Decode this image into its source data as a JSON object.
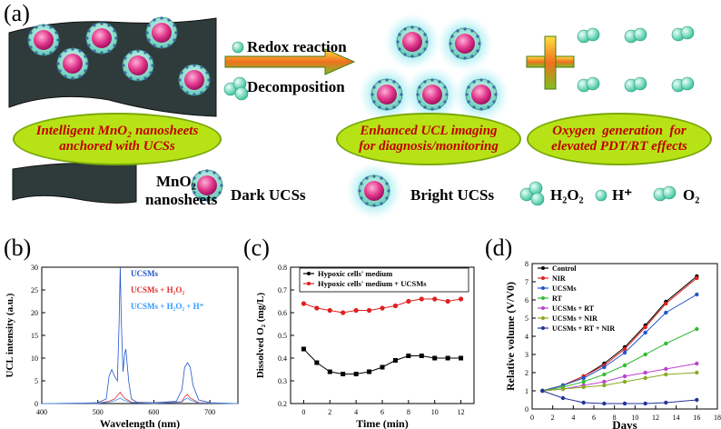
{
  "panel_a": {
    "label": "(a)",
    "arrow_top_text": "Redox reaction",
    "arrow_bottom_text": "Decomposition",
    "oval_left_line1": "Intelligent MnO₂ nanosheets",
    "oval_left_line2": "anchored with UCSs",
    "oval_mid_line1": "Enhanced UCL imaging",
    "oval_mid_line2": "for diagnosis/monitoring",
    "oval_right_line1": "Oxygen  generation  for",
    "oval_right_line2": "elevated PDT/RT effects",
    "legend_mno2_line1": "MnO₂",
    "legend_mno2_line2": "nanosheets",
    "legend_dark": "Dark UCSs",
    "legend_bright": "Bright UCSs",
    "legend_h2o2": "H₂O₂",
    "legend_h": "H⁺",
    "legend_o2": "O₂",
    "colors": {
      "oval_fill": "#b7e316",
      "oval_text": "#c00000",
      "sheet": "#2f3b3b",
      "sphere_core": "#e0358a",
      "sphere_shell": "#7fe0d0",
      "glow": "#9fe8ee"
    }
  },
  "chart_data": [
    {
      "panel": "(b)",
      "type": "line",
      "xlabel": "Wavelength (nm)",
      "ylabel": "UCL intensity (a.u.)",
      "xlim": [
        400,
        750
      ],
      "ylim": [
        0,
        30
      ],
      "xticks": [
        400,
        500,
        600,
        700
      ],
      "yticks": [
        0,
        5,
        10,
        15,
        20,
        25,
        30
      ],
      "series": [
        {
          "name": "UCSMs",
          "color": "#2255cc",
          "x": [
            400,
            470,
            500,
            515,
            520,
            525,
            530,
            535,
            538,
            540,
            542,
            545,
            548,
            550,
            555,
            560,
            570,
            600,
            640,
            650,
            655,
            660,
            665,
            670,
            680,
            700,
            750
          ],
          "y": [
            0,
            0.1,
            0.2,
            1,
            6,
            7.5,
            6,
            5,
            18,
            30,
            18,
            7,
            11,
            12,
            5,
            1,
            0.3,
            0.2,
            0.5,
            3,
            8,
            9,
            8,
            4,
            0.8,
            0.2,
            0
          ]
        },
        {
          "name": "UCSMs + H₂O₂",
          "color": "#e03030",
          "x": [
            400,
            500,
            520,
            530,
            540,
            545,
            550,
            560,
            600,
            650,
            655,
            660,
            665,
            680,
            750
          ],
          "y": [
            0,
            0.1,
            0.5,
            1,
            2.5,
            1.5,
            1,
            0.3,
            0.1,
            0.4,
            1.5,
            2,
            1.2,
            0.2,
            0
          ]
        },
        {
          "name": "UCSMs + H₂O₂ + H⁺",
          "color": "#3399ff",
          "x": [
            400,
            500,
            520,
            530,
            540,
            545,
            550,
            560,
            600,
            650,
            655,
            660,
            665,
            680,
            750
          ],
          "y": [
            0,
            0.05,
            0.3,
            0.6,
            1.2,
            0.8,
            0.6,
            0.2,
            0.05,
            0.3,
            0.9,
            1.2,
            0.8,
            0.1,
            0
          ]
        }
      ]
    },
    {
      "panel": "(c)",
      "type": "line",
      "xlabel": "Time (min)",
      "ylabel": "Dissolved O₂ (mg/L)",
      "xlim": [
        -1,
        13
      ],
      "ylim": [
        0.2,
        0.8
      ],
      "xticks": [
        0,
        2,
        4,
        6,
        8,
        10,
        12
      ],
      "yticks": [
        0.2,
        0.3,
        0.4,
        0.5,
        0.6,
        0.7,
        0.8
      ],
      "series": [
        {
          "name": "Hypoxic cells' medium",
          "color": "#000000",
          "marker": "square",
          "x": [
            0,
            1,
            2,
            3,
            4,
            5,
            6,
            7,
            8,
            9,
            10,
            11,
            12
          ],
          "y": [
            0.44,
            0.38,
            0.34,
            0.33,
            0.33,
            0.34,
            0.36,
            0.39,
            0.41,
            0.41,
            0.4,
            0.4,
            0.4
          ]
        },
        {
          "name": "Hypoxic cells' medium + UCSMs",
          "color": "#e02020",
          "marker": "circle",
          "x": [
            0,
            1,
            2,
            3,
            4,
            5,
            6,
            7,
            8,
            9,
            10,
            11,
            12
          ],
          "y": [
            0.64,
            0.62,
            0.61,
            0.6,
            0.61,
            0.61,
            0.62,
            0.63,
            0.65,
            0.66,
            0.66,
            0.65,
            0.66
          ]
        }
      ]
    },
    {
      "panel": "(d)",
      "type": "line",
      "xlabel": "Days",
      "ylabel": "Relative volume (V/V0)",
      "xlim": [
        0,
        18
      ],
      "ylim": [
        0,
        8
      ],
      "xticks": [
        0,
        2,
        4,
        6,
        8,
        10,
        12,
        14,
        16,
        18
      ],
      "yticks": [
        0,
        1,
        2,
        3,
        4,
        5,
        6,
        7,
        8
      ],
      "series": [
        {
          "name": "Control",
          "color": "#000000",
          "x": [
            1,
            3,
            5,
            7,
            9,
            11,
            13,
            16
          ],
          "y": [
            1,
            1.3,
            1.8,
            2.5,
            3.4,
            4.6,
            5.9,
            7.3
          ]
        },
        {
          "name": "NIR",
          "color": "#e02020",
          "x": [
            1,
            3,
            5,
            7,
            9,
            11,
            13,
            16
          ],
          "y": [
            1,
            1.3,
            1.8,
            2.4,
            3.3,
            4.5,
            5.8,
            7.2
          ]
        },
        {
          "name": "UCSMs",
          "color": "#2255cc",
          "x": [
            1,
            3,
            5,
            7,
            9,
            11,
            13,
            16
          ],
          "y": [
            1,
            1.3,
            1.7,
            2.3,
            3.1,
            4.2,
            5.3,
            6.3
          ]
        },
        {
          "name": "RT",
          "color": "#33bb33",
          "x": [
            1,
            3,
            5,
            7,
            9,
            11,
            13,
            16
          ],
          "y": [
            1,
            1.2,
            1.5,
            1.9,
            2.4,
            3.0,
            3.6,
            4.4
          ]
        },
        {
          "name": "UCSMs + RT",
          "color": "#bb44cc",
          "x": [
            1,
            3,
            5,
            7,
            9,
            11,
            13,
            16
          ],
          "y": [
            1,
            1.1,
            1.3,
            1.5,
            1.8,
            2.0,
            2.2,
            2.5
          ]
        },
        {
          "name": "UCSMs + NIR",
          "color": "#88aa22",
          "x": [
            1,
            3,
            5,
            7,
            9,
            11,
            13,
            16
          ],
          "y": [
            1,
            1.1,
            1.2,
            1.3,
            1.5,
            1.7,
            1.9,
            2.0
          ]
        },
        {
          "name": "UCSMs + RT + NIR",
          "color": "#223399",
          "x": [
            1,
            3,
            5,
            7,
            9,
            11,
            13,
            16
          ],
          "y": [
            1,
            0.6,
            0.35,
            0.3,
            0.3,
            0.3,
            0.35,
            0.5
          ]
        }
      ]
    }
  ]
}
